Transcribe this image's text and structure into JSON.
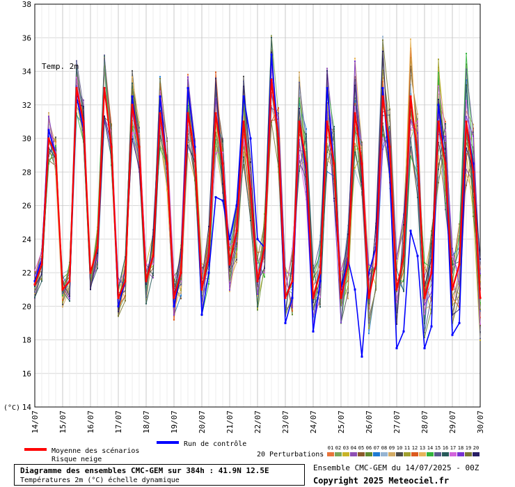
{
  "chart_data": {
    "type": "line",
    "title": "Diagramme des ensembles CMC-GEM sur 384h : 41.9N 12.5E",
    "subtitle": "Températures 2m (°C) échelle dynamique",
    "series_label": "Temp. 2m",
    "ylabel": "(°C)",
    "ylim": [
      14,
      38
    ],
    "yticks": [
      "14",
      "16",
      "18",
      "20",
      "22",
      "24",
      "26",
      "28",
      "30",
      "32",
      "34",
      "36",
      "38"
    ],
    "xlim": [
      0,
      64
    ],
    "xtick_labels": [
      "14/07",
      "15/07",
      "16/07",
      "17/07",
      "18/07",
      "19/07",
      "20/07",
      "21/07",
      "22/07",
      "23/07",
      "24/07",
      "25/07",
      "26/07",
      "27/07",
      "28/07",
      "29/07",
      "30/07"
    ],
    "grid": true,
    "x_step_hours": 6,
    "series": [
      {
        "name": "Moyenne des scénarios",
        "color": "#ff0000",
        "values": [
          21.3,
          22.5,
          30.0,
          29.0,
          21.0,
          21.5,
          33.0,
          31.0,
          22.0,
          23.5,
          33.0,
          29.5,
          20.5,
          21.5,
          32.0,
          29.5,
          21.5,
          23.0,
          31.5,
          28.5,
          20.5,
          22.0,
          31.5,
          29.0,
          21.0,
          23.0,
          31.5,
          28.5,
          22.5,
          24.5,
          31.0,
          27.0,
          21.5,
          23.5,
          33.5,
          30.0,
          20.5,
          21.5,
          31.0,
          28.5,
          20.5,
          22.0,
          31.0,
          28.5,
          20.5,
          22.5,
          31.5,
          28.5,
          20.5,
          22.5,
          32.5,
          29.5,
          21.0,
          23.0,
          32.5,
          29.0,
          20.5,
          22.0,
          31.0,
          28.5,
          21.0,
          22.5,
          31.0,
          28.0,
          20.5
        ]
      },
      {
        "name": "Run de contrôle",
        "color": "#0000ff",
        "values": [
          21.5,
          22.8,
          30.5,
          29.0,
          21.0,
          21.5,
          32.5,
          30.5,
          22.0,
          23.5,
          33.0,
          29.5,
          20.0,
          21.5,
          32.5,
          29.5,
          21.5,
          23.0,
          32.5,
          28.5,
          20.0,
          22.0,
          33.0,
          29.5,
          19.5,
          22.0,
          26.5,
          26.3,
          24.0,
          26.0,
          32.5,
          30.0,
          24.0,
          23.5,
          35.0,
          30.0,
          19.0,
          20.5,
          31.0,
          28.0,
          18.5,
          21.5,
          33.0,
          28.5,
          21.0,
          22.8,
          21.0,
          17.0,
          22.0,
          23.5,
          33.0,
          28.0,
          17.5,
          18.5,
          24.5,
          23.0,
          17.5,
          18.8,
          32.0,
          28.5,
          18.3,
          19.0,
          31.0,
          28.5,
          20.5
        ]
      }
    ],
    "perturbations_legend_title": "20 Perturbations",
    "perturbations": [
      {
        "name": "01",
        "color": "#e8743b"
      },
      {
        "name": "02",
        "color": "#7aa65a"
      },
      {
        "name": "03",
        "color": "#c8b428"
      },
      {
        "name": "04",
        "color": "#8e4fb4"
      },
      {
        "name": "05",
        "color": "#8b5a2b"
      },
      {
        "name": "06",
        "color": "#5e8a2e"
      },
      {
        "name": "07",
        "color": "#1e7ad2"
      },
      {
        "name": "08",
        "color": "#96b4d2"
      },
      {
        "name": "09",
        "color": "#d2aa64"
      },
      {
        "name": "10",
        "color": "#4b4b4b"
      },
      {
        "name": "11",
        "color": "#a0a02d"
      },
      {
        "name": "12",
        "color": "#dc5a1e"
      },
      {
        "name": "13",
        "color": "#e6b45a"
      },
      {
        "name": "14",
        "color": "#32b43c"
      },
      {
        "name": "15",
        "color": "#5a5a8c"
      },
      {
        "name": "16",
        "color": "#285a5a"
      },
      {
        "name": "17",
        "color": "#d264dc"
      },
      {
        "name": "18",
        "color": "#7832d2"
      },
      {
        "name": "19",
        "color": "#787832"
      },
      {
        "name": "20",
        "color": "#281e64"
      }
    ],
    "legend": {
      "mean_label": "Moyenne des scénarios",
      "snow_label": "Risque neige",
      "control_label": "Run de contrôle"
    }
  },
  "footer": {
    "ensemble_info": "Ensemble CMC-GEM du 14/07/2025 - 00Z",
    "copyright": "Copyright 2025 Meteociel.fr"
  }
}
